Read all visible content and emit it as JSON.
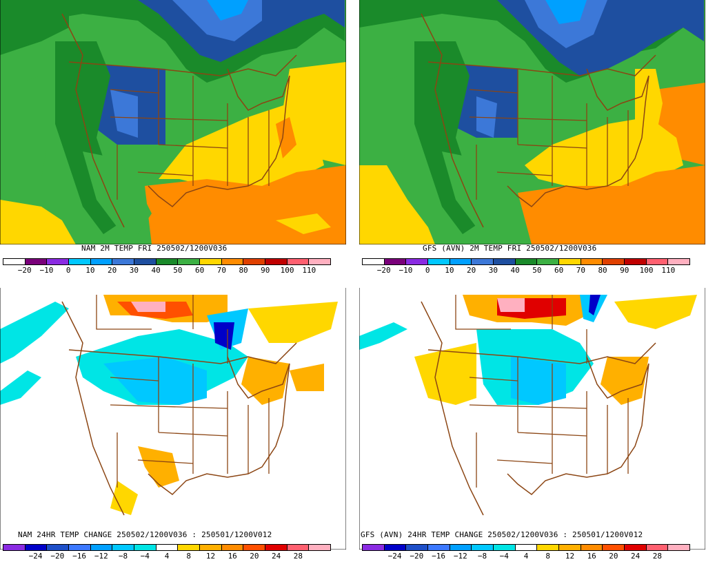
{
  "panels": [
    {
      "id": "nam-temp",
      "title": "NAM 2M TEMP  FRI 250502/1200V036",
      "legend": {
        "labels": [
          "-20",
          "-10",
          "0",
          "10",
          "20",
          "30",
          "40",
          "50",
          "60",
          "70",
          "80",
          "90",
          "100",
          "110"
        ],
        "colors": [
          "#ffffff",
          "#7a007a",
          "#8a2be2",
          "#00c8ff",
          "#00a0ff",
          "#3c78d8",
          "#1e4fa0",
          "#1a8a2a",
          "#3cb043",
          "#ffd700",
          "#ff8c00",
          "#e04000",
          "#c00000",
          "#ff6070",
          "#ffb0c0"
        ]
      }
    },
    {
      "id": "gfs-temp",
      "title": "GFS (AVN) 2M TEMP  FRI 250502/1200V036",
      "legend": {
        "labels": [
          "-20",
          "-10",
          "0",
          "10",
          "20",
          "30",
          "40",
          "50",
          "60",
          "70",
          "80",
          "90",
          "100",
          "110"
        ],
        "colors": [
          "#ffffff",
          "#7a007a",
          "#8a2be2",
          "#00c8ff",
          "#00a0ff",
          "#3c78d8",
          "#1e4fa0",
          "#1a8a2a",
          "#3cb043",
          "#ffd700",
          "#ff8c00",
          "#e04000",
          "#c00000",
          "#ff6070",
          "#ffb0c0"
        ]
      }
    },
    {
      "id": "nam-change",
      "title": "NAM 24HR TEMP CHANGE 250502/1200V036 : 250501/1200V012",
      "legend": {
        "labels": [
          "-24",
          "-20",
          "-16",
          "-12",
          "-8",
          "-4",
          "4",
          "8",
          "12",
          "16",
          "20",
          "24",
          "28"
        ],
        "colors": [
          "#8a2be2",
          "#0000c8",
          "#1e4fc8",
          "#3c78ff",
          "#00a0ff",
          "#00c8ff",
          "#00e5e5",
          "#ffffff",
          "#ffd700",
          "#ffb000",
          "#ff8c00",
          "#ff5000",
          "#e00000",
          "#ff6070",
          "#ffb0c0"
        ]
      }
    },
    {
      "id": "gfs-change",
      "title": "GFS (AVN) 24HR TEMP CHANGE 250502/1200V036 : 250501/1200V012",
      "legend": {
        "labels": [
          "-24",
          "-20",
          "-16",
          "-12",
          "-8",
          "-4",
          "4",
          "8",
          "12",
          "16",
          "20",
          "24",
          "28"
        ],
        "colors": [
          "#8a2be2",
          "#0000c8",
          "#1e4fc8",
          "#3c78ff",
          "#00a0ff",
          "#00c8ff",
          "#00e5e5",
          "#ffffff",
          "#ffd700",
          "#ffb000",
          "#ff8c00",
          "#ff5000",
          "#e00000",
          "#ff6070",
          "#ffb0c0"
        ]
      }
    }
  ]
}
